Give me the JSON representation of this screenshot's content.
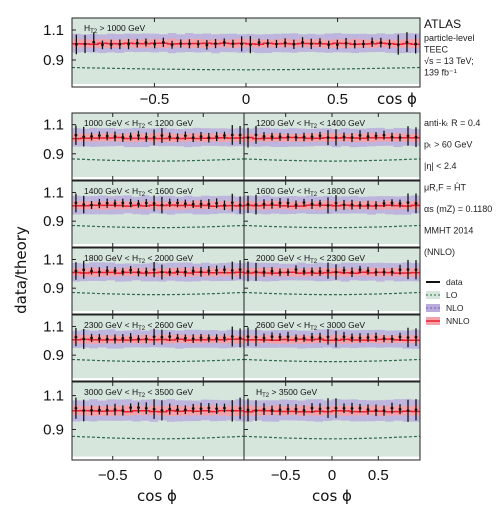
{
  "chart_data": {
    "type": "line",
    "ylabel": "data/theory",
    "xlabel": "cos ϕ",
    "x_ticks": [
      "−0.5",
      "0",
      "0.5"
    ],
    "y_ticks": [
      "1.1",
      "0.9"
    ],
    "xlim": [
      -0.95,
      0.95
    ],
    "ylim": [
      0.72,
      1.18
    ],
    "colors": {
      "data": "#111111",
      "lo_band": "#d6e6dd",
      "lo_line": "#2e6b4b",
      "nlo_band": "#b9acdd",
      "nnlo_band": "#f4a2a9",
      "nnlo_line": "#e8202f"
    },
    "info": {
      "experiment": "ATLAS",
      "lines1": [
        "particle-level",
        "TEEC",
        "√s = 13 TeV;",
        "139 fb⁻¹"
      ],
      "lines2": [
        "anti-kₜ R = 0.4",
        "pₜ > 60 GeV",
        "|η| < 2.4",
        "μR,F = ĤT",
        "αs (mZ) = 0.1180",
        "MMHT 2014",
        "(NNLO)"
      ]
    },
    "legend": [
      "data",
      "LO",
      "NLO",
      "NNLO"
    ],
    "panels": [
      {
        "label": "H_T2 > 1000 GeV",
        "lo": 0.85,
        "data": 1.01
      },
      {
        "label": "1000 GeV < H_T2 < 1200 GeV",
        "lo": 0.865,
        "data": 1.02
      },
      {
        "label": "1200 GeV < H_T2 < 1400 GeV",
        "lo": 0.865,
        "data": 1.02
      },
      {
        "label": "1400 GeV < H_T2 < 1600 GeV",
        "lo": 0.87,
        "data": 1.02
      },
      {
        "label": "1600 GeV < H_T2 < 1800 GeV",
        "lo": 0.87,
        "data": 1.02
      },
      {
        "label": "1800 GeV < H_T2 < 2000 GeV",
        "lo": 0.87,
        "data": 1.02
      },
      {
        "label": "2000 GeV < H_T2 < 2300 GeV",
        "lo": 0.87,
        "data": 1.02
      },
      {
        "label": "2300 GeV < H_T2 < 2600 GeV",
        "lo": 0.87,
        "data": 1.02
      },
      {
        "label": "2600 GeV < H_T2 < 3000 GeV",
        "lo": 0.87,
        "data": 1.02
      },
      {
        "label": "3000 GeV < H_T2 < 3500 GeV",
        "lo": 0.86,
        "data": 1.02
      },
      {
        "label": "H_T2 > 3500 GeV",
        "lo": 0.86,
        "data": 1.02
      }
    ]
  }
}
